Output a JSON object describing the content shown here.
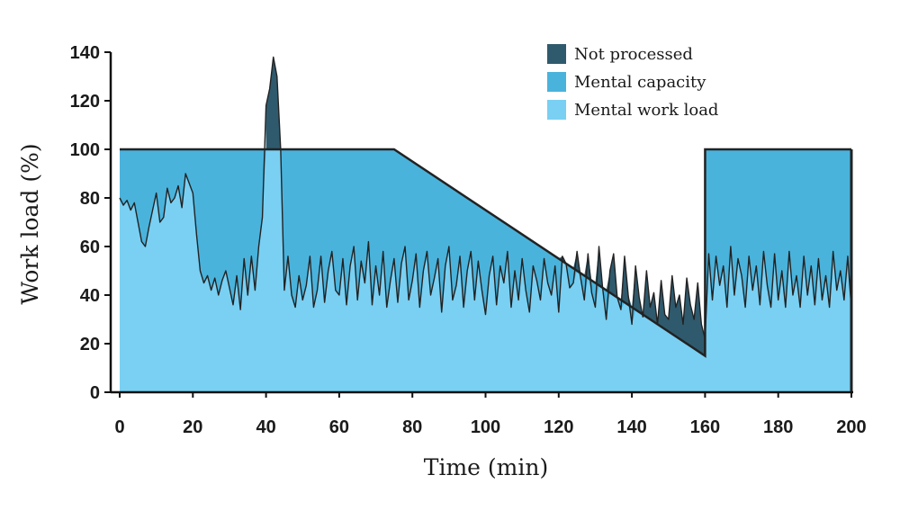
{
  "chart_data": {
    "type": "area",
    "xlabel": "Time (min)",
    "ylabel": "Work load (%)",
    "xlim": [
      0,
      200
    ],
    "ylim": [
      0,
      140
    ],
    "x_ticks": [
      0,
      20,
      40,
      60,
      80,
      100,
      120,
      140,
      160,
      180,
      200
    ],
    "y_ticks": [
      0,
      20,
      40,
      60,
      80,
      100,
      120,
      140
    ],
    "legend_position": "top-right",
    "legend": [
      {
        "label": "Not processed",
        "color": "#2f5a6d"
      },
      {
        "label": "Mental capacity",
        "color": "#4ab3dc"
      },
      {
        "label": "Mental work load",
        "color": "#79d0f3"
      }
    ],
    "series": [
      {
        "name": "Mental capacity",
        "x": [
          0,
          75,
          160,
          160.01,
          200
        ],
        "y": [
          100,
          100,
          15,
          100,
          100
        ]
      },
      {
        "name": "Mental work load",
        "x": [
          0,
          1,
          2,
          3,
          4,
          5,
          6,
          7,
          8,
          9,
          10,
          11,
          12,
          13,
          14,
          15,
          16,
          17,
          18,
          19,
          20,
          21,
          22,
          23,
          24,
          25,
          26,
          27,
          28,
          29,
          30,
          31,
          32,
          33,
          34,
          35,
          36,
          37,
          38,
          39,
          40,
          41,
          42,
          43,
          44,
          45,
          46,
          47,
          48,
          49,
          50,
          51,
          52,
          53,
          54,
          55,
          56,
          57,
          58,
          59,
          60,
          61,
          62,
          63,
          64,
          65,
          66,
          67,
          68,
          69,
          70,
          71,
          72,
          73,
          74,
          75,
          76,
          77,
          78,
          79,
          80,
          81,
          82,
          83,
          84,
          85,
          86,
          87,
          88,
          89,
          90,
          91,
          92,
          93,
          94,
          95,
          96,
          97,
          98,
          99,
          100,
          101,
          102,
          103,
          104,
          105,
          106,
          107,
          108,
          109,
          110,
          111,
          112,
          113,
          114,
          115,
          116,
          117,
          118,
          119,
          120,
          121,
          122,
          123,
          124,
          125,
          126,
          127,
          128,
          129,
          130,
          131,
          132,
          133,
          134,
          135,
          136,
          137,
          138,
          139,
          140,
          141,
          142,
          143,
          144,
          145,
          146,
          147,
          148,
          149,
          150,
          151,
          152,
          153,
          154,
          155,
          156,
          157,
          158,
          159,
          160,
          161,
          162,
          163,
          164,
          165,
          166,
          167,
          168,
          169,
          170,
          171,
          172,
          173,
          174,
          175,
          176,
          177,
          178,
          179,
          180,
          181,
          182,
          183,
          184,
          185,
          186,
          187,
          188,
          189,
          190,
          191,
          192,
          193,
          194,
          195,
          196,
          197,
          198,
          199,
          200
        ],
        "y": [
          80,
          77,
          79,
          75,
          78,
          70,
          62,
          60,
          68,
          75,
          82,
          70,
          72,
          84,
          78,
          80,
          85,
          76,
          90,
          86,
          82,
          65,
          50,
          45,
          48,
          42,
          47,
          40,
          46,
          50,
          43,
          36,
          48,
          34,
          55,
          40,
          56,
          42,
          60,
          72,
          118,
          125,
          138,
          130,
          100,
          42,
          56,
          40,
          35,
          48,
          38,
          44,
          56,
          35,
          42,
          56,
          37,
          50,
          58,
          42,
          40,
          55,
          36,
          52,
          60,
          38,
          54,
          45,
          62,
          36,
          52,
          40,
          58,
          35,
          46,
          55,
          37,
          53,
          60,
          38,
          46,
          57,
          35,
          50,
          58,
          40,
          47,
          55,
          33,
          52,
          60,
          38,
          44,
          56,
          35,
          50,
          58,
          38,
          54,
          42,
          32,
          48,
          56,
          36,
          52,
          45,
          58,
          35,
          50,
          38,
          55,
          42,
          33,
          52,
          46,
          38,
          55,
          45,
          40,
          52,
          33,
          56,
          53,
          43,
          45,
          58,
          47,
          38,
          57,
          41,
          35,
          60,
          43,
          30,
          50,
          57,
          39,
          34,
          56,
          40,
          28,
          52,
          39,
          31,
          50,
          35,
          41,
          28,
          46,
          32,
          30,
          48,
          35,
          40,
          28,
          47,
          36,
          30,
          45,
          28,
          22,
          57,
          38,
          56,
          44,
          52,
          35,
          60,
          40,
          55,
          48,
          35,
          56,
          42,
          52,
          36,
          58,
          44,
          35,
          57,
          38,
          50,
          35,
          58,
          40,
          48,
          35,
          56,
          40,
          52,
          36,
          55,
          38,
          48,
          35,
          58,
          42,
          50,
          38,
          56,
          34
        ]
      },
      {
        "name": "Not processed",
        "x": [
          40,
          41,
          42,
          43,
          44,
          123,
          125,
          130,
          135,
          140,
          145,
          150,
          155,
          158,
          160
        ],
        "y": [
          18,
          25,
          38,
          30,
          0,
          3,
          8,
          15,
          14,
          26,
          17,
          22,
          19,
          10,
          7
        ]
      }
    ]
  }
}
